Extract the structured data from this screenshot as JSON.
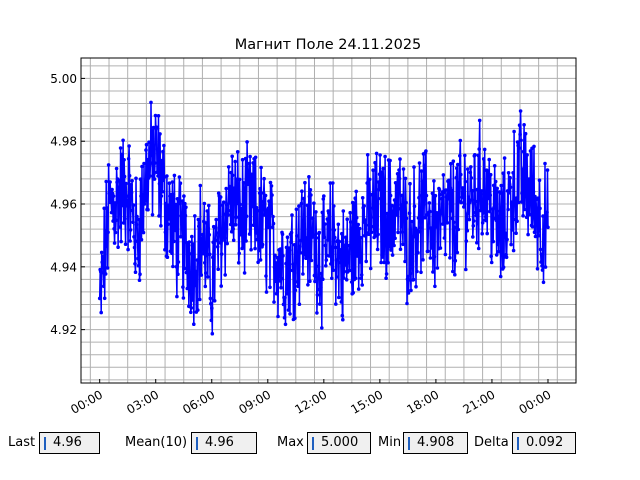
{
  "chart_data": {
    "type": "line",
    "title": "Магнит Поле 24.11.2025",
    "xlabel": "",
    "ylabel": "",
    "x_ticks": [
      "00:00",
      "03:00",
      "06:00",
      "09:00",
      "12:00",
      "15:00",
      "18:00",
      "21:00",
      "00:00"
    ],
    "y_ticks": [
      "4.92",
      "4.94",
      "4.96",
      "4.98",
      "5.00"
    ],
    "ylim": [
      4.903,
      5.0065
    ],
    "xlim_hours": [
      -1.0,
      25.5
    ],
    "grid": true,
    "series_color": "#0000ff",
    "series": [
      {
        "x_hours": [
          0.0,
          0.5,
          1.0,
          1.5,
          2.0,
          2.5,
          3.0,
          3.5,
          4.0,
          4.5,
          5.0,
          5.5,
          6.0,
          6.5,
          7.0,
          7.5,
          8.0,
          8.5,
          9.0,
          9.5,
          10.0,
          10.5,
          11.0,
          11.5,
          12.0,
          12.5,
          13.0,
          13.5,
          14.0,
          14.5,
          15.0,
          15.5,
          16.0,
          16.5,
          17.0,
          17.5,
          18.0,
          18.5,
          19.0,
          19.5,
          20.0,
          20.5,
          21.0,
          21.5,
          22.0,
          22.5,
          23.0,
          23.5,
          24.0
        ],
        "values": [
          4.927,
          4.958,
          4.962,
          4.965,
          4.948,
          4.97,
          4.975,
          4.962,
          4.951,
          4.947,
          4.942,
          4.95,
          4.935,
          4.952,
          4.962,
          4.956,
          4.958,
          4.955,
          4.95,
          4.944,
          4.94,
          4.946,
          4.952,
          4.948,
          4.941,
          4.95,
          4.939,
          4.946,
          4.953,
          4.955,
          4.958,
          4.956,
          4.96,
          4.948,
          4.955,
          4.958,
          4.951,
          4.954,
          4.956,
          4.962,
          4.961,
          4.968,
          4.958,
          4.949,
          4.962,
          4.97,
          4.965,
          4.957,
          4.951
        ]
      }
    ]
  },
  "stats": {
    "last": {
      "label": "Last",
      "value": "4.96"
    },
    "mean": {
      "label": "Mean(10)",
      "value": "4.96"
    },
    "max": {
      "label": "Max",
      "value": "5.000"
    },
    "min": {
      "label": "Min",
      "value": "4.908"
    },
    "delta": {
      "label": "Delta",
      "value": "0.092"
    }
  }
}
